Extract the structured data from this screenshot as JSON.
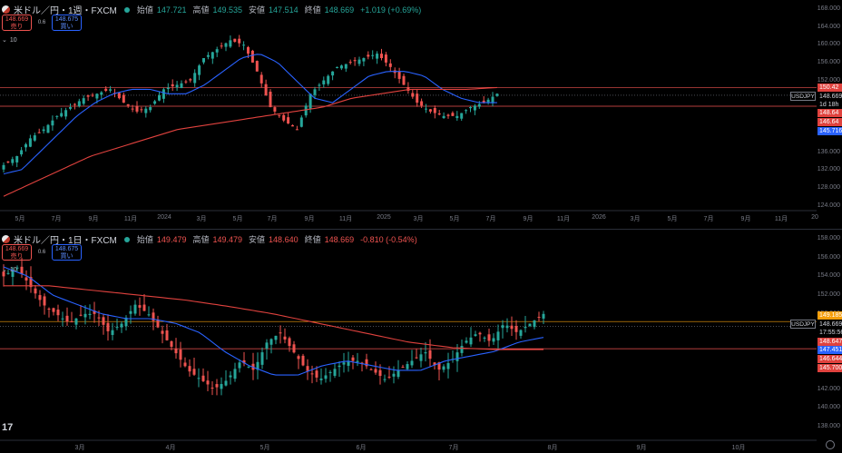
{
  "top": {
    "title": "米ドル／円・1週・FXCM",
    "ohlc": [
      {
        "label": "始値",
        "value": "147.721"
      },
      {
        "label": "高値",
        "value": "149.535"
      },
      {
        "label": "安値",
        "value": "147.514"
      },
      {
        "label": "終値",
        "value": "148.669"
      }
    ],
    "change": "+1.019 (+0.69%)",
    "sell": {
      "price": "148.669",
      "label": "売り"
    },
    "buy": {
      "price": "148.675",
      "label": "買い"
    },
    "spread": "0.6",
    "ma_label": "10",
    "yticks": [
      "168.000",
      "164.000",
      "160.000",
      "156.000",
      "152.000",
      "148.000",
      "144.000",
      "140.000",
      "136.000",
      "132.000",
      "128.000",
      "124.000"
    ],
    "xticks": [
      "5月",
      "7月",
      "9月",
      "11月",
      "2024",
      "3月",
      "5月",
      "7月",
      "9月",
      "11月",
      "2025",
      "3月",
      "5月",
      "7月",
      "9月",
      "11月",
      "2026",
      "3月",
      "5月",
      "7月",
      "9月",
      "11月",
      "20"
    ],
    "tags": [
      {
        "text": "150.42",
        "color": "#e0423e"
      },
      {
        "text": "148.669",
        "color": "#000"
      },
      {
        "text": "1d 18h",
        "color": "#000"
      },
      {
        "text": "148.64",
        "color": "#e0423e"
      },
      {
        "text": "146.64",
        "color": "#e0423e"
      },
      {
        "text": "145.716",
        "color": "#2962ff"
      }
    ],
    "symbol": "USDJPY"
  },
  "bottom": {
    "title": "米ドル／円・1日・FXCM",
    "ohlc": [
      {
        "label": "始値",
        "value": "149.479"
      },
      {
        "label": "高値",
        "value": "149.479"
      },
      {
        "label": "安値",
        "value": "148.640"
      },
      {
        "label": "終値",
        "value": "148.669"
      }
    ],
    "change": "-0.810 (-0.54%)",
    "sell": {
      "price": "148.669",
      "label": "売り"
    },
    "buy": {
      "price": "148.675",
      "label": "買い"
    },
    "spread": "0.6",
    "ma_label": "10",
    "yticks": [
      "158.000",
      "156.000",
      "154.000",
      "152.000",
      "150.000",
      "148.000",
      "146.000",
      "144.000",
      "142.000",
      "140.000",
      "138.000"
    ],
    "xticks": [
      "3月",
      "4月",
      "5月",
      "6月",
      "7月",
      "8月",
      "9月",
      "10月"
    ],
    "tags": [
      {
        "text": "149.185",
        "color": "#f59e0b"
      },
      {
        "text": "148.669",
        "color": "#000"
      },
      {
        "text": "17:55:56",
        "color": "#000"
      },
      {
        "text": "148.647",
        "color": "#e0423e"
      },
      {
        "text": "147.451",
        "color": "#2962ff"
      },
      {
        "text": "146.644",
        "color": "#e0423e"
      },
      {
        "text": "145.700",
        "color": "#e0423e"
      }
    ],
    "symbol": "USDJPY"
  },
  "logo": "17"
}
